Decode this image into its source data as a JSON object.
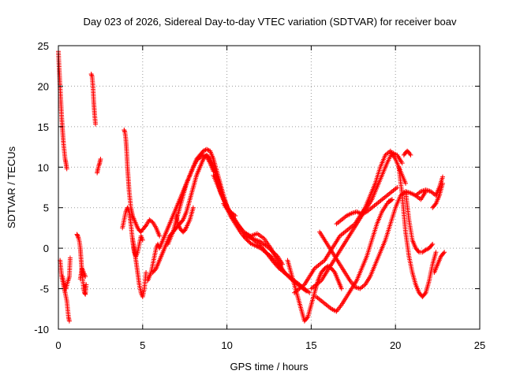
{
  "chart_data": {
    "type": "scatter",
    "title": "Day 023 of 2026, Sidereal Day-to-day VTEC variation (SDTVAR) for receiver boav",
    "xlabel": "GPS time / hours",
    "ylabel": "SDTVAR / TECUs",
    "xlim": [
      0,
      25
    ],
    "ylim": [
      -10,
      25
    ],
    "xticks": [
      0,
      5,
      10,
      15,
      20,
      25
    ],
    "yticks": [
      -10,
      -5,
      0,
      5,
      10,
      15,
      20,
      25
    ],
    "grid": true,
    "marker": "+",
    "color": "#ff0000",
    "tracks": [
      {
        "x": [
          0.0,
          0.05,
          0.1,
          0.15,
          0.2,
          0.25,
          0.3,
          0.35,
          0.4,
          0.45,
          0.5
        ],
        "y": [
          24.3,
          22,
          20,
          18,
          16,
          14.5,
          13,
          12,
          11,
          10.5,
          9.8
        ]
      },
      {
        "x": [
          0.1,
          0.15,
          0.2,
          0.3,
          0.35,
          0.4,
          0.5,
          0.55,
          0.6,
          0.65
        ],
        "y": [
          -1.5,
          -2.5,
          -3.5,
          -4.5,
          -5,
          -5.5,
          -6.5,
          -7.5,
          -8.5,
          -9
        ]
      },
      {
        "x": [
          0.25,
          0.35,
          0.45,
          0.55,
          0.65,
          0.7
        ],
        "y": [
          -3.5,
          -4.5,
          -5,
          -4.2,
          -3.5,
          -1.2
        ]
      },
      {
        "x": [
          1.1,
          1.15,
          1.2,
          1.25,
          1.3,
          1.35,
          1.4,
          1.45,
          1.5,
          1.55,
          1.6,
          1.65
        ],
        "y": [
          1.7,
          1.5,
          1.2,
          0.8,
          0,
          -1.5,
          -3,
          -4,
          -5,
          -5.5,
          -5.7,
          -4.5
        ]
      },
      {
        "x": [
          1.3,
          1.4,
          1.5,
          1.6
        ],
        "y": [
          -3.8,
          -2.5,
          -3,
          -3.5
        ]
      },
      {
        "x": [
          1.95,
          2.0,
          2.05,
          2.1,
          2.15,
          2.2
        ],
        "y": [
          21.5,
          21.2,
          20,
          18,
          16.5,
          15.3
        ]
      },
      {
        "x": [
          2.3,
          2.35,
          2.4,
          2.45,
          2.5
        ],
        "y": [
          9.3,
          9.8,
          10.2,
          10.5,
          11
        ]
      },
      {
        "x": [
          3.9,
          3.95,
          4.0,
          4.05,
          4.1,
          4.15,
          4.2,
          4.25,
          4.3,
          4.35,
          4.4,
          4.5,
          4.6,
          4.7,
          4.8,
          4.9,
          5.0,
          5.2,
          5.4,
          5.6,
          5.8,
          6.0
        ],
        "y": [
          14.6,
          14.3,
          13.5,
          12,
          10,
          8.5,
          7,
          6,
          5,
          4.5,
          4,
          3.5,
          3,
          2.5,
          2.2,
          2,
          2.3,
          2.8,
          3.5,
          3.2,
          2.5,
          1.5
        ]
      },
      {
        "x": [
          3.8,
          3.9,
          4.0,
          4.1,
          4.2,
          4.3,
          4.4,
          4.5,
          4.6,
          4.7,
          4.8,
          4.9,
          5.0
        ],
        "y": [
          2.5,
          3.5,
          4.5,
          5,
          4.5,
          3,
          1,
          -0.5,
          -1,
          -0.5,
          0.5,
          1.5,
          1
        ]
      },
      {
        "x": [
          4.4,
          4.5,
          4.6,
          4.7,
          4.8,
          4.9,
          5.0,
          5.1,
          5.2
        ],
        "y": [
          1.2,
          0,
          -1.5,
          -3,
          -4.5,
          -5.5,
          -6,
          -5,
          -3
        ]
      },
      {
        "x": [
          5.3,
          5.4,
          5.5,
          5.6,
          5.7,
          5.8,
          5.9,
          6.0,
          6.2,
          6.4,
          6.6,
          6.8,
          7.0,
          7.2,
          7.4,
          7.6,
          7.8,
          8.0,
          8.2,
          8.4,
          8.6,
          8.8,
          9.0,
          9.2,
          9.4,
          9.6,
          9.8,
          10.0
        ],
        "y": [
          -4,
          -3.5,
          -3,
          -2,
          -1,
          0,
          0.5,
          0,
          1,
          2,
          3,
          4,
          5,
          6,
          7,
          8,
          9,
          10,
          11,
          11.5,
          12,
          12.2,
          12,
          11,
          9.5,
          8,
          6.5,
          5.2
        ]
      },
      {
        "x": [
          5.6,
          5.8,
          6.0,
          6.2,
          6.4,
          6.6,
          6.8,
          7.0,
          7.2,
          7.4,
          7.6,
          7.8,
          8.0,
          8.2,
          8.4,
          8.6,
          8.8,
          9.0,
          9.2,
          9.4,
          9.6,
          9.8,
          10.0,
          10.2,
          10.5
        ],
        "y": [
          -3,
          -2.5,
          -1.5,
          -0.5,
          0.5,
          1.5,
          2,
          2.5,
          3,
          3.5,
          4.5,
          6,
          7.5,
          9,
          10,
          11,
          11.5,
          11,
          10,
          8.5,
          7,
          6,
          5,
          4.5,
          4
        ]
      },
      {
        "x": [
          6.5,
          6.8,
          7.0,
          7.2,
          7.4,
          7.6,
          7.8,
          8.0,
          8.2,
          8.4,
          8.6,
          8.8,
          9.0,
          9.2
        ],
        "y": [
          0.5,
          2,
          3.5,
          5,
          6.5,
          8,
          9,
          10,
          10.8,
          11.2,
          11.5,
          11.3,
          10.5,
          9.5
        ]
      },
      {
        "x": [
          7.0,
          7.1,
          7.2,
          7.3,
          7.4,
          7.5,
          7.6,
          7.8,
          8.0
        ],
        "y": [
          4,
          3,
          2.5,
          2.2,
          2,
          2.2,
          2.6,
          3.5,
          5
        ]
      },
      {
        "x": [
          9.0,
          9.3,
          9.6,
          9.9,
          10.2,
          10.5,
          10.8,
          11.1,
          11.4,
          11.7,
          12.0,
          12.3,
          12.6,
          12.9,
          13.2,
          13.5,
          13.8,
          14.1,
          14.4,
          14.7
        ],
        "y": [
          11,
          9.5,
          7.5,
          5.5,
          4,
          3,
          2,
          1.2,
          0.6,
          0.3,
          0,
          -0.5,
          -1,
          -1.8,
          -2.5,
          -3.2,
          -3.8,
          -4.3,
          -4.8,
          -5.3
        ]
      },
      {
        "x": [
          9.2,
          9.5,
          9.8,
          10.1,
          10.4,
          10.7,
          11.0,
          11.3,
          11.6,
          11.9,
          12.2,
          12.5,
          12.8,
          13.1,
          13.4,
          13.7,
          14.0,
          14.3,
          14.6,
          14.9
        ],
        "y": [
          9,
          7.5,
          6,
          4.8,
          3.8,
          2.8,
          2,
          1.5,
          1,
          0.5,
          -0.2,
          -1,
          -1.8,
          -2.5,
          -3,
          -3.5,
          -4,
          -4.5,
          -5,
          -5.5
        ]
      },
      {
        "x": [
          9.8,
          10.2,
          10.6,
          11.0,
          11.4,
          11.8,
          12.2,
          12.6,
          13.0,
          13.4
        ],
        "y": [
          5.5,
          4.2,
          3,
          2,
          1.5,
          1.8,
          1.2,
          0,
          -1.5,
          -3
        ]
      },
      {
        "x": [
          11.0,
          11.5,
          12.0,
          12.5,
          13.0,
          13.3
        ],
        "y": [
          1.5,
          1.2,
          0.8,
          0,
          -1,
          -2
        ]
      },
      {
        "x": [
          13.6,
          13.8,
          14.0,
          14.2,
          14.4,
          14.6,
          14.8,
          15.0,
          15.2,
          15.4,
          15.6,
          15.8,
          16.0,
          16.2,
          16.4,
          16.6,
          16.8
        ],
        "y": [
          -1.5,
          -3,
          -4.5,
          -6,
          -7.5,
          -9,
          -8.5,
          -7,
          -5.5,
          -4,
          -3,
          -2.5,
          -2.2,
          -2.5,
          -3,
          -4,
          -5
        ]
      },
      {
        "x": [
          14.0,
          14.3,
          14.6,
          14.9,
          15.2,
          15.5,
          15.8,
          16.1,
          16.4,
          16.7,
          17.0,
          17.3,
          17.6,
          17.9,
          18.2,
          18.5,
          18.8,
          19.1,
          19.4,
          19.7,
          20.0,
          20.3,
          20.6
        ],
        "y": [
          -5.5,
          -5,
          -4.5,
          -3.5,
          -2.5,
          -2,
          -1.5,
          -0.5,
          0.5,
          1.5,
          2,
          2.5,
          3,
          4,
          5,
          6.5,
          8,
          10,
          11.5,
          12,
          11,
          9.5,
          8
        ]
      },
      {
        "x": [
          15.0,
          15.3,
          15.6,
          15.9,
          16.2,
          16.5,
          16.8,
          17.1,
          17.4,
          17.7,
          18.0,
          18.3,
          18.6,
          18.9,
          19.2,
          19.5,
          19.8,
          20.1,
          20.4
        ],
        "y": [
          -5,
          -4.5,
          -4,
          -3,
          -2,
          -1,
          0,
          1,
          2,
          3,
          4,
          5,
          6,
          7.5,
          9,
          10.5,
          11.8,
          11.5,
          10.5
        ]
      },
      {
        "x": [
          15.5,
          15.8,
          16.1,
          16.4,
          16.7,
          17.0,
          17.3,
          17.6,
          17.9,
          18.2,
          18.5,
          18.8,
          19.1,
          19.4,
          19.7,
          20.0,
          20.3,
          20.6,
          20.9,
          21.2,
          21.5,
          21.8
        ],
        "y": [
          2,
          1,
          0,
          -1,
          -2,
          -3,
          -4,
          -4.8,
          -5,
          -4.5,
          -3.5,
          -2,
          -0.5,
          1,
          3,
          5,
          6.5,
          7,
          6.8,
          6.5,
          6,
          7
        ]
      },
      {
        "x": [
          15.3,
          15.6,
          15.9,
          16.2,
          16.5,
          16.8,
          17.1,
          17.4,
          17.7,
          18.0,
          18.3,
          18.6,
          18.9,
          19.2,
          19.5,
          19.8
        ],
        "y": [
          -6,
          -6.5,
          -7,
          -7.5,
          -7.8,
          -7,
          -6,
          -5,
          -4,
          -2.5,
          -1,
          1,
          3,
          4.5,
          5.5,
          6
        ]
      },
      {
        "x": [
          16.5,
          16.8,
          17.1,
          17.4,
          17.7,
          18.0,
          18.3,
          18.6,
          18.9,
          19.2,
          19.5,
          19.8,
          20.1
        ],
        "y": [
          3,
          3.5,
          4,
          4.3,
          4.5,
          4.2,
          4.5,
          5,
          5.5,
          6,
          6.5,
          7,
          7.5
        ]
      },
      {
        "x": [
          20.2,
          20.4,
          20.6,
          20.8,
          21.0,
          21.2,
          21.4,
          21.6,
          21.8,
          22.0,
          22.2,
          22.4
        ],
        "y": [
          10,
          6.5,
          2,
          -1,
          -3,
          -4.5,
          -5.5,
          -6,
          -5.5,
          -4,
          -2,
          -0.5
        ]
      },
      {
        "x": [
          20.6,
          20.8,
          21.0,
          21.2,
          21.4,
          21.6,
          21.8,
          22.0,
          22.2
        ],
        "y": [
          7,
          3.5,
          1,
          0,
          -0.5,
          -0.5,
          -0.2,
          0,
          0.5
        ]
      },
      {
        "x": [
          20.5,
          20.6,
          20.7,
          20.8,
          20.9
        ],
        "y": [
          11.5,
          11.8,
          12,
          11.8,
          11.5
        ]
      },
      {
        "x": [
          21.2,
          21.5,
          21.8,
          22.1,
          22.4,
          22.6,
          22.8
        ],
        "y": [
          6.5,
          7,
          7.2,
          7,
          6.5,
          7.5,
          8.8
        ]
      },
      {
        "x": [
          22.2,
          22.4,
          22.6,
          22.8
        ],
        "y": [
          5,
          5.5,
          6.5,
          8
        ]
      },
      {
        "x": [
          22.3,
          22.5,
          22.7,
          22.9
        ],
        "y": [
          -3,
          -2,
          -1,
          -0.5
        ]
      },
      {
        "x": [
          19.6,
          19.8
        ],
        "y": [
          5.8,
          6
        ]
      }
    ]
  }
}
